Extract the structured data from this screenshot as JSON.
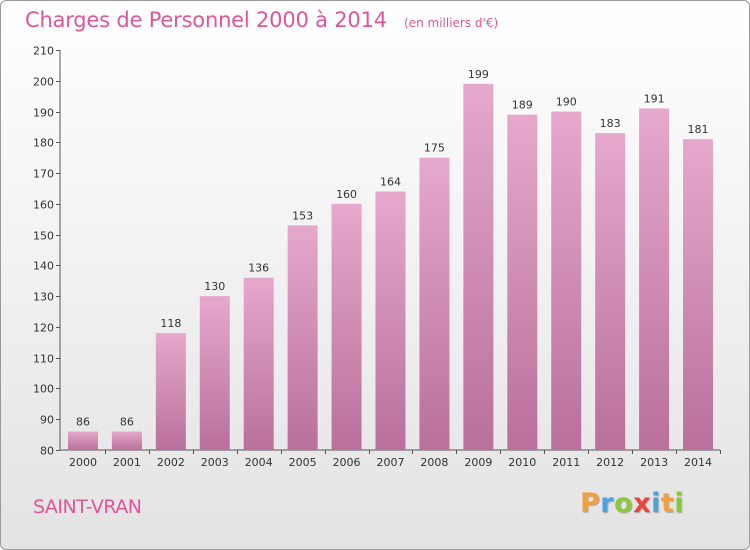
{
  "chart_data": {
    "type": "bar",
    "title": "Charges de Personnel 2000 à 2014",
    "subtitle": "(en milliers d'€)",
    "categories": [
      "2000",
      "2001",
      "2002",
      "2003",
      "2004",
      "2005",
      "2006",
      "2007",
      "2008",
      "2009",
      "2010",
      "2011",
      "2012",
      "2013",
      "2014"
    ],
    "values": [
      86,
      86,
      118,
      130,
      136,
      153,
      160,
      164,
      175,
      199,
      189,
      190,
      183,
      191,
      181
    ],
    "ylim": [
      80,
      210
    ],
    "yticks": [
      80,
      90,
      100,
      110,
      120,
      130,
      140,
      150,
      160,
      170,
      180,
      190,
      200,
      210
    ],
    "grid": false,
    "bar_color_top": "#e6a8cc",
    "bar_color_bottom": "#b9709b"
  },
  "place_name": "SAINT-VRAN",
  "logo": {
    "text": "Proxiti",
    "letters": [
      {
        "ch": "P",
        "color": "#f0a040"
      },
      {
        "ch": "r",
        "color": "#4aa3df"
      },
      {
        "ch": "o",
        "color": "#8cc63f"
      },
      {
        "ch": "x",
        "color": "#e8463c"
      },
      {
        "ch": "i",
        "color": "#4aa3df"
      },
      {
        "ch": "t",
        "color": "#f0a040"
      },
      {
        "ch": "i",
        "color": "#8cc63f"
      }
    ]
  }
}
